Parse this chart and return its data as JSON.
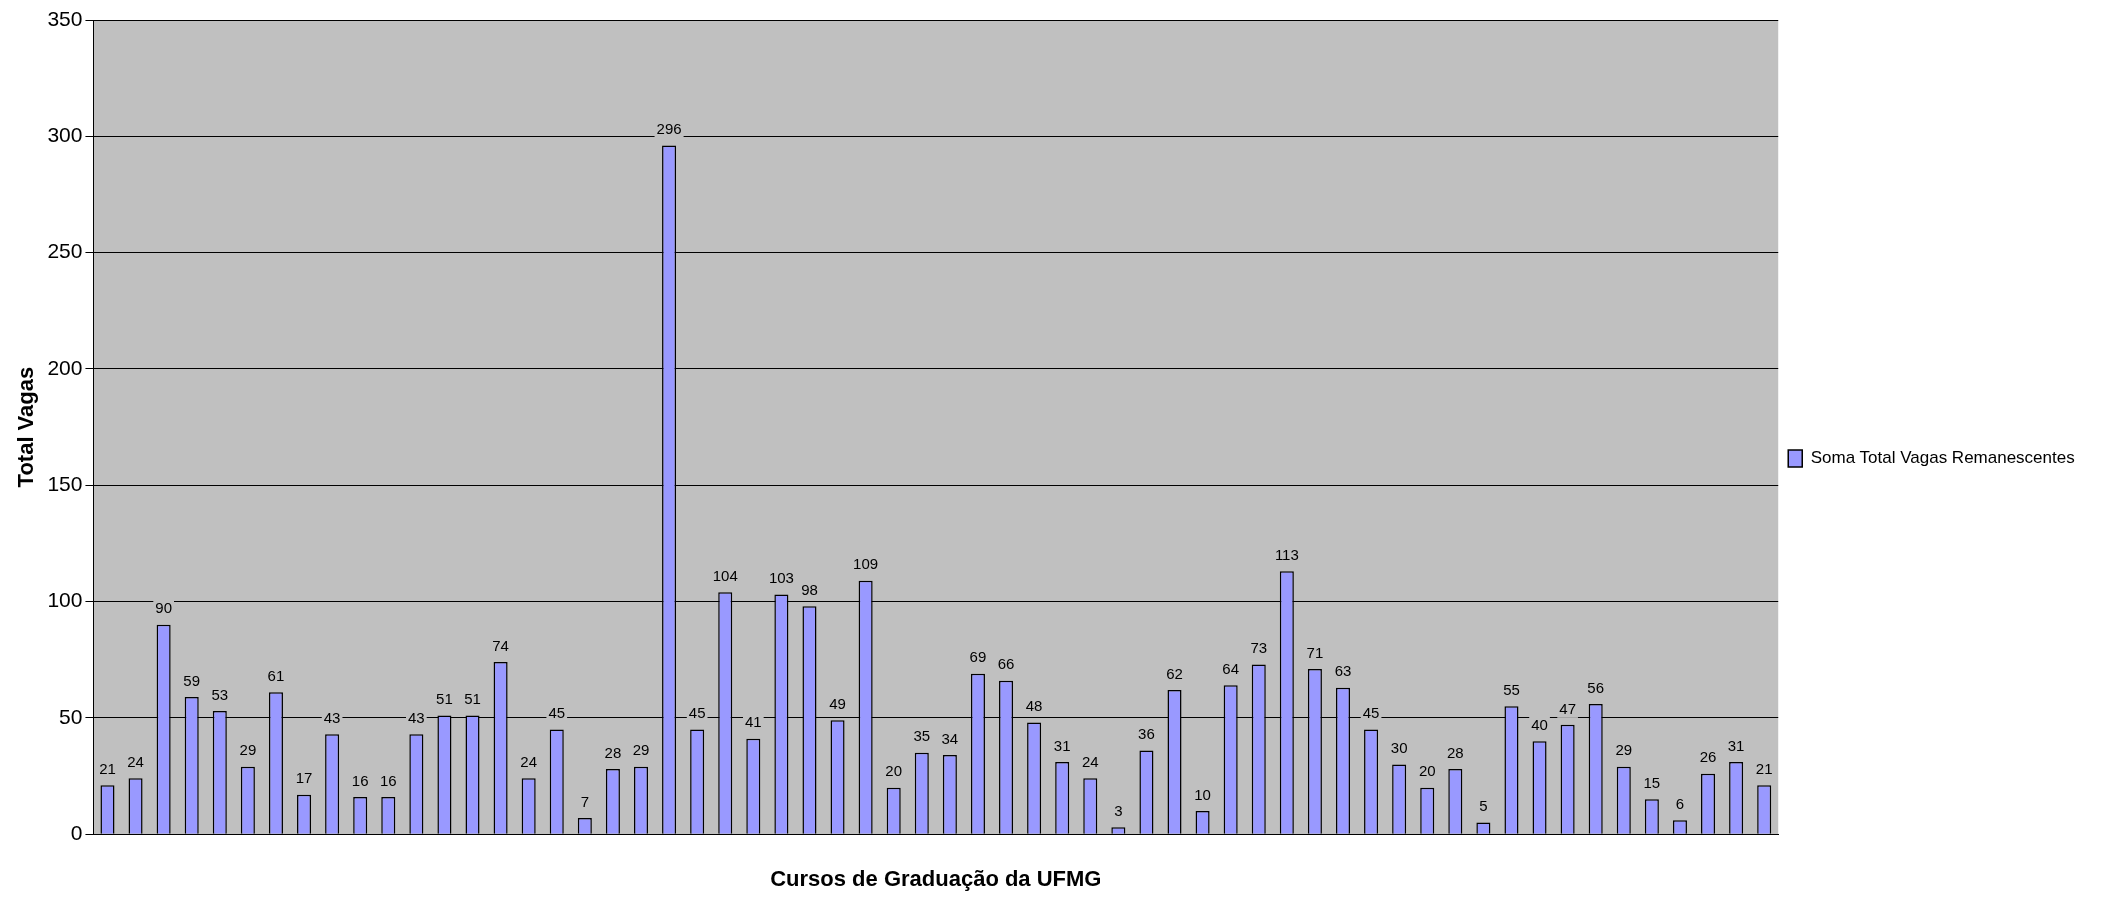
{
  "chart_data": {
    "type": "bar",
    "xlabel": "Cursos de Graduação da UFMG",
    "ylabel": "Total Vagas",
    "categories": [
      null,
      null,
      null,
      null,
      null,
      null,
      null,
      null,
      null,
      null,
      null,
      null,
      null,
      null,
      null,
      null,
      null,
      null,
      null,
      null,
      null,
      null,
      null,
      null,
      null,
      null,
      null,
      null,
      null,
      null,
      null,
      null,
      null,
      null,
      null,
      null,
      null,
      null,
      null,
      null,
      null,
      null,
      null,
      null,
      null,
      null,
      null,
      null,
      null,
      null,
      null,
      null,
      null,
      null,
      null,
      null,
      null,
      null,
      null,
      null
    ],
    "series": [
      {
        "name": "Soma Total Vagas Remanescentes",
        "color": "#9999ff",
        "values": [
          21,
          24,
          90,
          59,
          53,
          29,
          61,
          17,
          43,
          16,
          16,
          43,
          51,
          51,
          74,
          24,
          45,
          7,
          28,
          29,
          296,
          45,
          104,
          41,
          103,
          98,
          49,
          109,
          20,
          35,
          34,
          69,
          66,
          48,
          31,
          24,
          3,
          36,
          62,
          10,
          64,
          73,
          113,
          71,
          63,
          45,
          30,
          20,
          28,
          5,
          55,
          40,
          47,
          56,
          29,
          15,
          6,
          26,
          31,
          21
        ]
      }
    ],
    "ylim": [
      0,
      350
    ],
    "yticks": [
      0,
      50,
      100,
      150,
      200,
      250,
      300,
      350
    ],
    "grid": "y",
    "legend": "right",
    "data_labels": true
  }
}
